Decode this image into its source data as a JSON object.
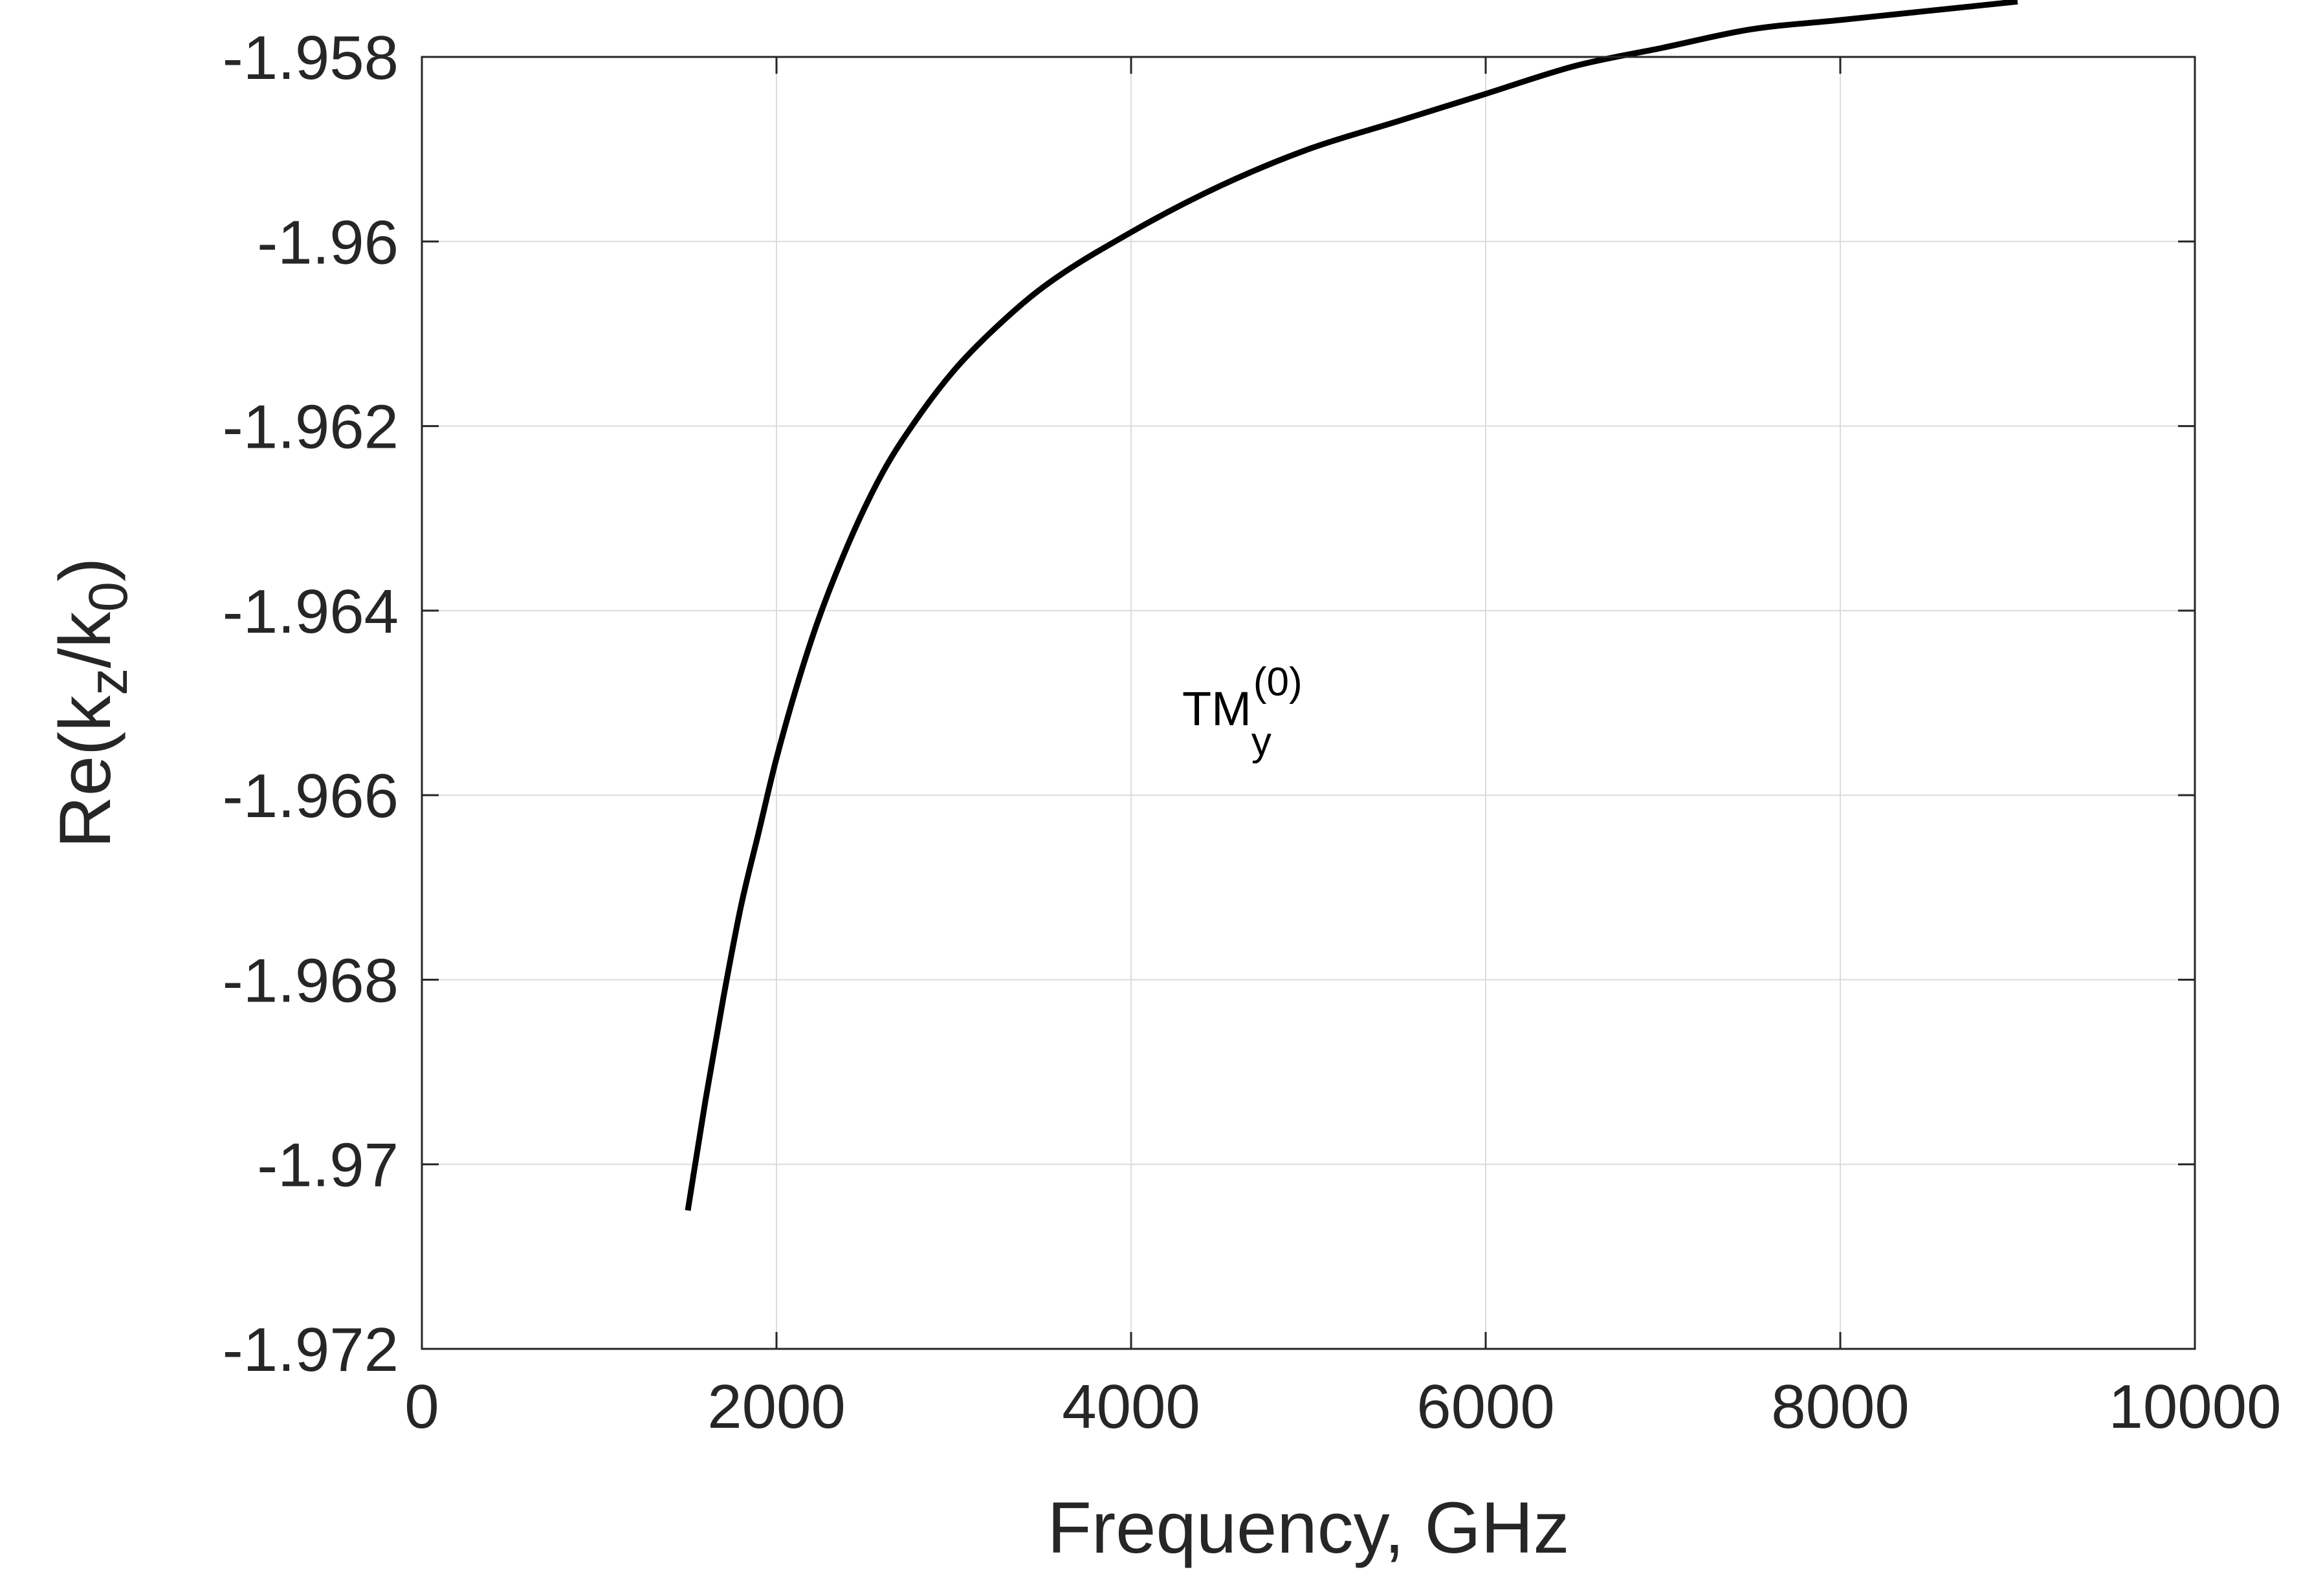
{
  "chart_data": {
    "type": "line",
    "title": "",
    "xlabel": "Frequency, GHz",
    "ylabel": {
      "main": "Re(k",
      "sub1": "z",
      "mid": "/k",
      "sub2": "0",
      "end": ")"
    },
    "xlim": [
      0,
      10000
    ],
    "ylim": [
      -1.972,
      -1.958
    ],
    "xticks": [
      0,
      2000,
      4000,
      6000,
      8000,
      10000
    ],
    "xtick_labels": [
      "0",
      "2000",
      "4000",
      "6000",
      "8000",
      "10000"
    ],
    "yticks": [
      -1.972,
      -1.97,
      -1.968,
      -1.966,
      -1.964,
      -1.962,
      -1.96,
      -1.958
    ],
    "ytick_labels": [
      "-1.972",
      "-1.97",
      "-1.968",
      "-1.966",
      "-1.964",
      "-1.962",
      "-1.96",
      "-1.958"
    ],
    "grid": true,
    "series": [
      {
        "name": "TM_y^(0)",
        "color": "#000000",
        "x": [
          1500,
          1600,
          1700,
          1800,
          1900,
          2000,
          2200,
          2400,
          2600,
          2800,
          3000,
          3200,
          3500,
          4000,
          4500,
          5000,
          5500,
          6000,
          6500,
          7000,
          7500,
          8000,
          8500,
          9000
        ],
        "y": [
          -1.9705,
          -1.9693,
          -1.9682,
          -1.9672,
          -1.9664,
          -1.9656,
          -1.9643,
          -1.9633,
          -1.9625,
          -1.9619,
          -1.9614,
          -1.961,
          -1.9605,
          -1.9599,
          -1.9594,
          -1.959,
          -1.9587,
          -1.9584,
          -1.9581,
          -1.9579,
          -1.9577,
          -1.9576,
          -1.9575,
          -1.9574
        ]
      }
    ],
    "annotations": [
      {
        "base": "TM",
        "sub": "y",
        "sup": "(0)",
        "x": 5000,
        "y": -1.9651
      }
    ]
  }
}
